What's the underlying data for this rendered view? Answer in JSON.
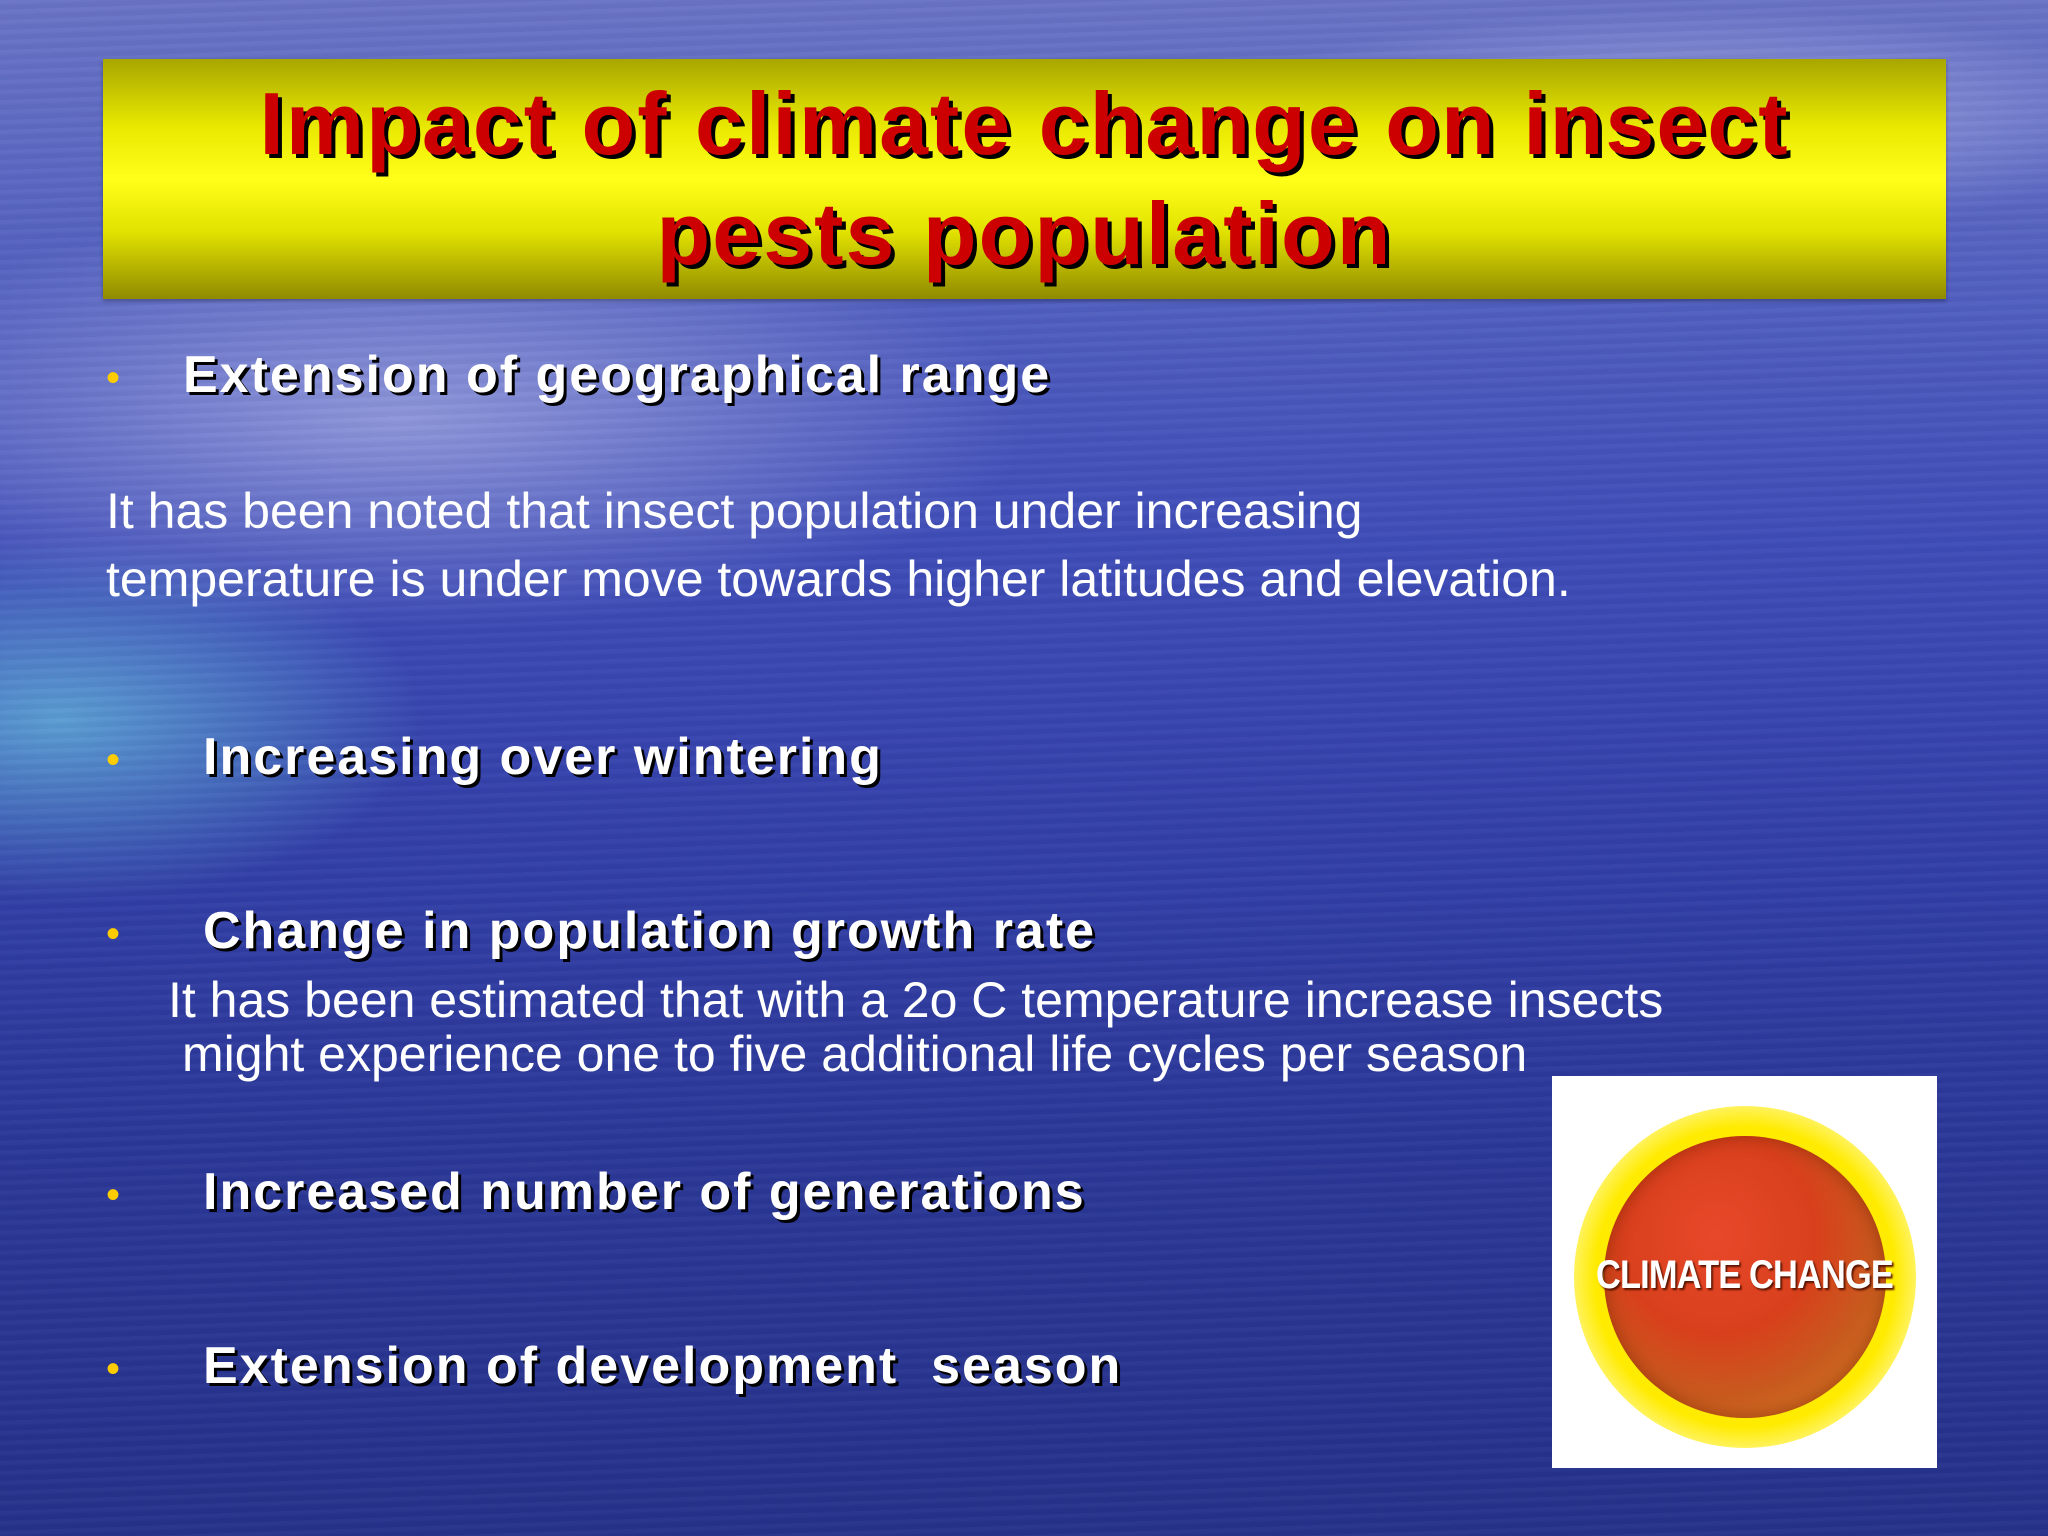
{
  "slide": {
    "title": "Impact of climate change on insect pests population",
    "bullet_glyph": "•",
    "sections": [
      {
        "heading": "Extension of geographical range",
        "body": [
          "It has been noted that insect population under increasing",
          "temperature is under move towards higher latitudes and elevation."
        ]
      },
      {
        "heading": "Increasing over wintering"
      },
      {
        "heading": "Change in population growth rate",
        "body": [
          "It has been estimated that with a 2o C temperature increase insects",
          "might experience one to five additional life cycles per season"
        ]
      },
      {
        "heading": "Increased number of generations"
      },
      {
        "heading": "Extension of development  season"
      }
    ],
    "logo": {
      "text": "CLIMATE CHANGE"
    }
  },
  "colors": {
    "title_text": "#cc0000",
    "title_band": "#ffff1a",
    "bullet": "#ffcc00",
    "body_text": "#ffffff"
  }
}
